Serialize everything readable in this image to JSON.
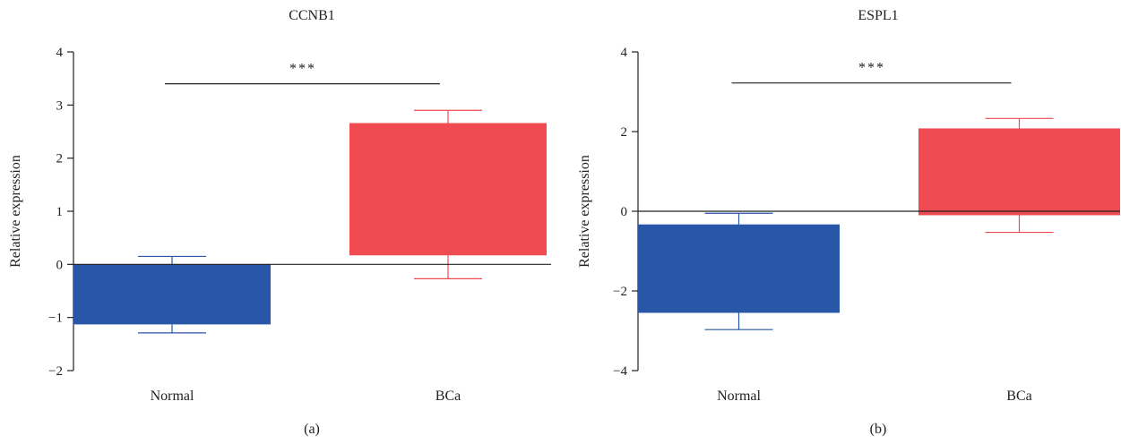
{
  "chart_data": [
    {
      "type": "bar",
      "panel_label": "(a)",
      "title": "CCNB1",
      "ylabel": "Relative expression",
      "xlabel": "",
      "ylim": [
        -2,
        4
      ],
      "yticks": [
        -2,
        -1,
        0,
        1,
        2,
        3,
        4
      ],
      "ytick_labels": [
        "−2",
        "−1",
        "0",
        "1",
        "2",
        "3",
        "4"
      ],
      "categories": [
        "Normal",
        "BCa"
      ],
      "bars": [
        {
          "category": "Normal",
          "bottom": -1.13,
          "top": 0.0,
          "whisker_low": -1.29,
          "whisker_high": 0.15,
          "color": "#2757a6"
        },
        {
          "category": "BCa",
          "bottom": 0.17,
          "top": 2.66,
          "whisker_low": -0.27,
          "whisker_high": 2.9,
          "color": "#ef4b50"
        }
      ],
      "zero_line": true,
      "grid": false,
      "significance": {
        "label": "***",
        "from": "Normal",
        "to": "BCa",
        "y": 3.4
      }
    },
    {
      "type": "bar",
      "panel_label": "(b)",
      "title": "ESPL1",
      "ylabel": "Relative expression",
      "xlabel": "",
      "ylim": [
        -4,
        4
      ],
      "yticks": [
        -4,
        -2,
        0,
        2,
        4
      ],
      "ytick_labels": [
        "−4",
        "−2",
        "0",
        "2",
        "4"
      ],
      "categories": [
        "Normal",
        "BCa"
      ],
      "bars": [
        {
          "category": "Normal",
          "bottom": -2.55,
          "top": -0.33,
          "whisker_low": -2.97,
          "whisker_high": -0.05,
          "color": "#2757a6"
        },
        {
          "category": "BCa",
          "bottom": -0.1,
          "top": 2.08,
          "whisker_low": -0.53,
          "whisker_high": 2.33,
          "color": "#ef4b50"
        }
      ],
      "zero_line": true,
      "grid": false,
      "significance": {
        "label": "***",
        "from": "Normal",
        "to": "BCa",
        "y": 3.22
      }
    }
  ],
  "colors": {
    "axis": "#222222",
    "normal": "#2757a6",
    "bca": "#ef4b50"
  }
}
